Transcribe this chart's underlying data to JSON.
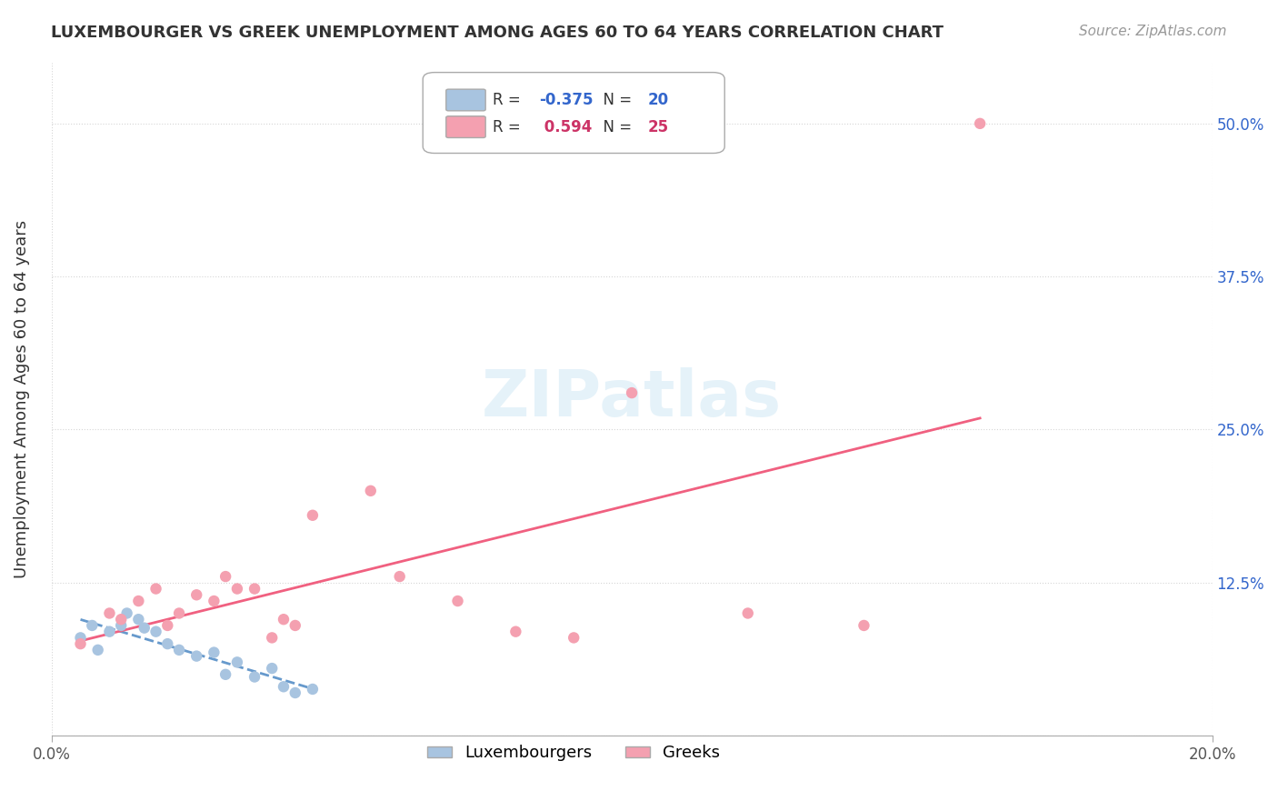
{
  "title": "LUXEMBOURGER VS GREEK UNEMPLOYMENT AMONG AGES 60 TO 64 YEARS CORRELATION CHART",
  "source": "Source: ZipAtlas.com",
  "xlabel_bottom": "",
  "ylabel": "Unemployment Among Ages 60 to 64 years",
  "x_tick_labels": [
    "0.0%",
    "20.0%"
  ],
  "y_tick_labels_right": [
    "50.0%",
    "37.5%",
    "25.0%",
    "12.5%",
    ""
  ],
  "legend_labels": [
    "Luxembourgers",
    "Greeks"
  ],
  "lux_R": -0.375,
  "lux_N": 20,
  "greek_R": 0.594,
  "greek_N": 25,
  "lux_color": "#a8c4e0",
  "greek_color": "#f4a0b0",
  "lux_line_color": "#6699cc",
  "greek_line_color": "#f06080",
  "background_color": "#ffffff",
  "grid_color": "#cccccc",
  "watermark": "ZIPatlas",
  "lux_scatter_x": [
    0.005,
    0.007,
    0.008,
    0.01,
    0.012,
    0.013,
    0.015,
    0.016,
    0.018,
    0.02,
    0.022,
    0.025,
    0.028,
    0.03,
    0.032,
    0.035,
    0.038,
    0.04,
    0.042,
    0.045
  ],
  "lux_scatter_y": [
    0.08,
    0.09,
    0.07,
    0.085,
    0.09,
    0.1,
    0.095,
    0.088,
    0.085,
    0.075,
    0.07,
    0.065,
    0.068,
    0.05,
    0.06,
    0.048,
    0.055,
    0.04,
    0.035,
    0.038
  ],
  "greek_scatter_x": [
    0.005,
    0.01,
    0.012,
    0.015,
    0.018,
    0.02,
    0.022,
    0.025,
    0.028,
    0.03,
    0.032,
    0.035,
    0.038,
    0.04,
    0.042,
    0.045,
    0.055,
    0.06,
    0.07,
    0.08,
    0.09,
    0.1,
    0.12,
    0.14,
    0.16
  ],
  "greek_scatter_y": [
    0.075,
    0.1,
    0.095,
    0.11,
    0.12,
    0.09,
    0.1,
    0.115,
    0.11,
    0.13,
    0.12,
    0.12,
    0.08,
    0.095,
    0.09,
    0.18,
    0.2,
    0.13,
    0.11,
    0.085,
    0.08,
    0.28,
    0.1,
    0.09,
    0.5
  ],
  "xlim": [
    0.0,
    0.2
  ],
  "ylim": [
    0.0,
    0.55
  ]
}
